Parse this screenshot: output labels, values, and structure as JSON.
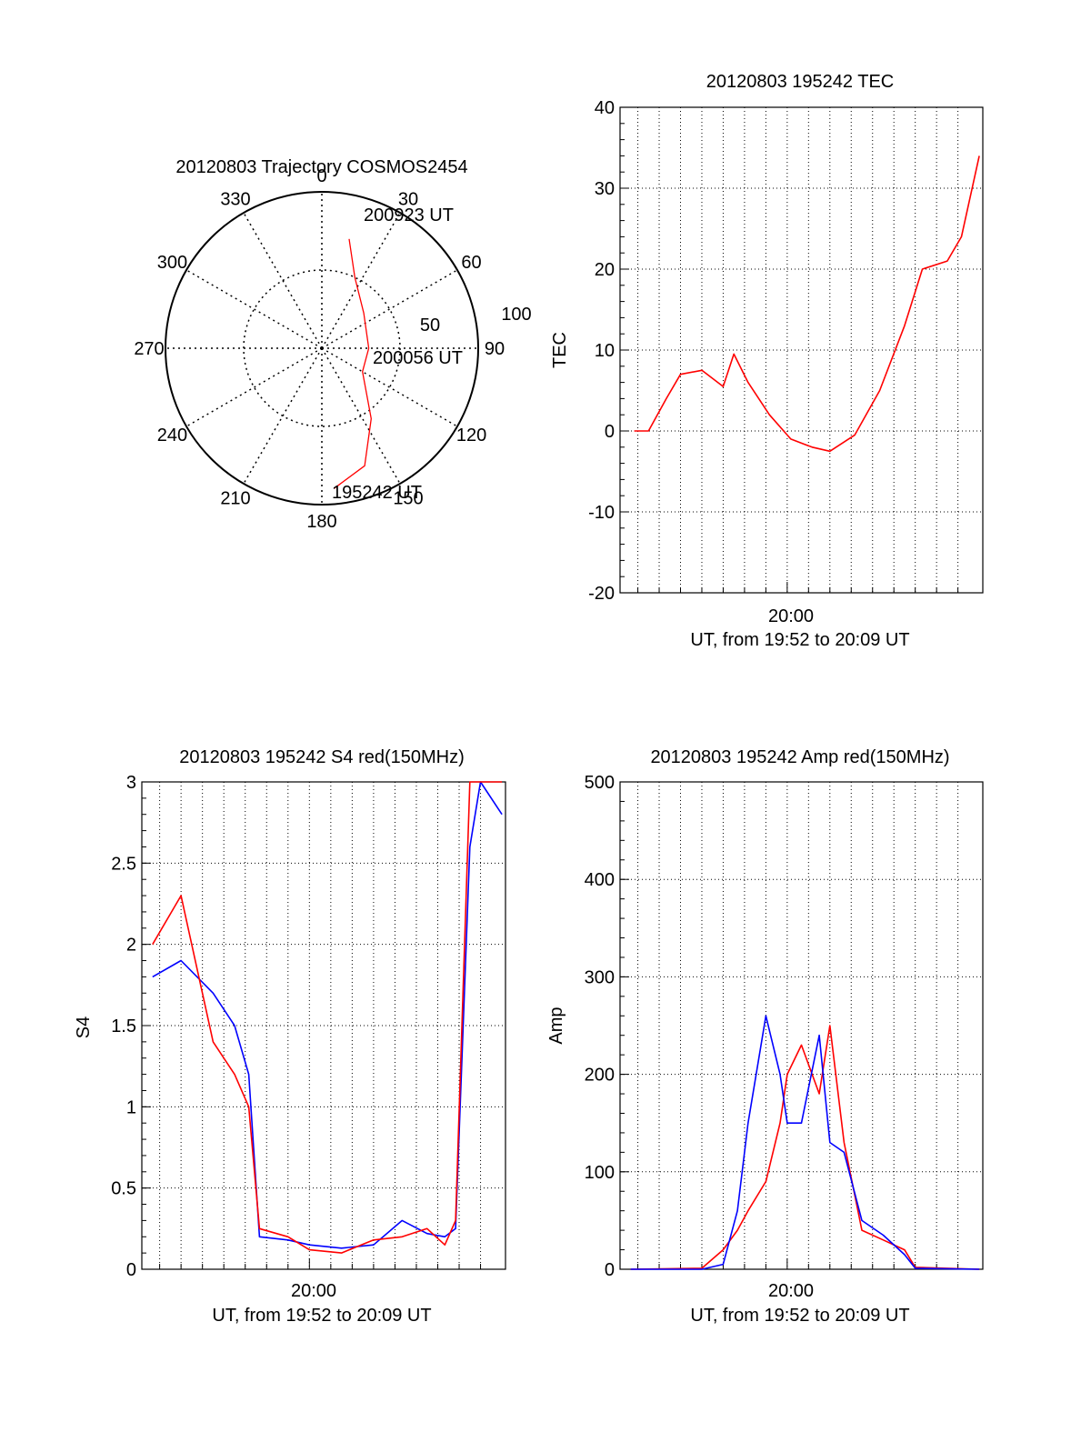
{
  "chart_data": [
    {
      "type": "polar",
      "title": "20120803 Trajectory COSMOS2454",
      "azimuth_labels": [
        "0",
        "30",
        "60",
        "90",
        "120",
        "150",
        "180",
        "210",
        "240",
        "270",
        "300",
        "330"
      ],
      "radius_labels": [
        "50",
        "100"
      ],
      "grid": true,
      "series": [
        {
          "color": "#ff0000",
          "points": [
            {
              "az": 14,
              "r": 72
            },
            {
              "az": 25,
              "r": 50
            },
            {
              "az": 50,
              "r": 35
            },
            {
              "az": 90,
              "r": 30
            },
            {
              "az": 120,
              "r": 30
            },
            {
              "az": 145,
              "r": 55
            },
            {
              "az": 160,
              "r": 80
            },
            {
              "az": 175,
              "r": 90
            }
          ]
        }
      ],
      "annotations": [
        "200923 UT",
        "200056 UT",
        "195242 UT"
      ]
    },
    {
      "type": "line",
      "title": "20120803 195242 TEC",
      "ylabel": "TEC",
      "xlabel": "UT, from 19:52 to 20:09 UT",
      "xticklabels": [
        "20:00"
      ],
      "ylim": [
        -20,
        40
      ],
      "yticks": [
        "-20",
        "-10",
        "0",
        "10",
        "20",
        "30",
        "40"
      ],
      "grid": true,
      "series": [
        {
          "color": "#ff0000",
          "x": [
            "19:52:50",
            "19:53:30",
            "19:54:20",
            "19:55:00",
            "19:56:00",
            "19:57:00",
            "19:57:30",
            "19:58:10",
            "19:59:10",
            "20:00:10",
            "20:01:10",
            "20:02:00",
            "20:03:10",
            "20:04:20",
            "20:05:30",
            "20:06:20",
            "20:07:30",
            "20:08:10",
            "20:09:00"
          ],
          "values": [
            0,
            0,
            4,
            7,
            7.5,
            5.5,
            9.5,
            6,
            2,
            -1,
            -2,
            -2.5,
            -0.5,
            5,
            13,
            20,
            21,
            24,
            34
          ]
        }
      ]
    },
    {
      "type": "line",
      "title": "20120803 195242 S4 red(150MHz)",
      "ylabel": "S4",
      "xlabel": "UT, from 19:52 to 20:09 UT",
      "xticklabels": [
        "20:00"
      ],
      "ylim": [
        0,
        3
      ],
      "yticks": [
        "0",
        "0.5",
        "1",
        "1.5",
        "2",
        "2.5",
        "3"
      ],
      "grid": true,
      "series": [
        {
          "color": "#0000ff",
          "x": [
            "19:52:40",
            "19:54:00",
            "19:55:30",
            "19:56:30",
            "19:57:10",
            "19:57:40",
            "19:59:00",
            "20:00:00",
            "20:01:30",
            "20:03:00",
            "20:04:20",
            "20:05:30",
            "20:06:20",
            "20:06:50",
            "20:07:30",
            "20:08:00",
            "20:09:00"
          ],
          "values": [
            1.8,
            1.9,
            1.7,
            1.5,
            1.2,
            0.2,
            0.18,
            0.15,
            0.13,
            0.15,
            0.3,
            0.22,
            0.2,
            0.25,
            2.6,
            3,
            2.8
          ]
        },
        {
          "color": "#ff0000",
          "x": [
            "19:52:40",
            "19:54:00",
            "19:55:30",
            "19:56:30",
            "19:57:10",
            "19:57:40",
            "19:59:00",
            "20:00:00",
            "20:01:30",
            "20:03:00",
            "20:04:20",
            "20:05:30",
            "20:06:20",
            "20:06:50",
            "20:07:30",
            "20:08:00",
            "20:09:00"
          ],
          "values": [
            2.0,
            2.3,
            1.4,
            1.2,
            1.0,
            0.25,
            0.2,
            0.12,
            0.1,
            0.18,
            0.2,
            0.25,
            0.15,
            0.3,
            3,
            3,
            3
          ]
        }
      ]
    },
    {
      "type": "line",
      "title": "20120803 195242 Amp red(150MHz)",
      "ylabel": "Amp",
      "xlabel": "UT, from 19:52 to 20:09 UT",
      "xticklabels": [
        "20:00"
      ],
      "ylim": [
        0,
        500
      ],
      "yticks": [
        "0",
        "100",
        "200",
        "300",
        "400",
        "500"
      ],
      "grid": true,
      "series": [
        {
          "color": "#ff0000",
          "x": [
            "19:52:40",
            "19:56:00",
            "19:57:00",
            "19:57:40",
            "19:58:10",
            "19:59:00",
            "19:59:40",
            "20:00:00",
            "20:00:40",
            "20:01:30",
            "20:02:00",
            "20:02:40",
            "20:03:30",
            "20:04:30",
            "20:05:30",
            "20:06:00",
            "20:09:00"
          ],
          "values": [
            0,
            1,
            20,
            40,
            60,
            90,
            150,
            200,
            230,
            180,
            250,
            130,
            40,
            30,
            20,
            2,
            0
          ]
        },
        {
          "color": "#0000ff",
          "x": [
            "19:52:40",
            "19:56:00",
            "19:57:00",
            "19:57:40",
            "19:58:10",
            "19:59:00",
            "19:59:40",
            "20:00:00",
            "20:00:40",
            "20:01:30",
            "20:02:00",
            "20:02:40",
            "20:03:30",
            "20:04:30",
            "20:05:30",
            "20:06:00",
            "20:09:00"
          ],
          "values": [
            0,
            0,
            5,
            60,
            150,
            260,
            200,
            150,
            150,
            240,
            130,
            120,
            50,
            35,
            15,
            1,
            0
          ]
        }
      ]
    }
  ]
}
